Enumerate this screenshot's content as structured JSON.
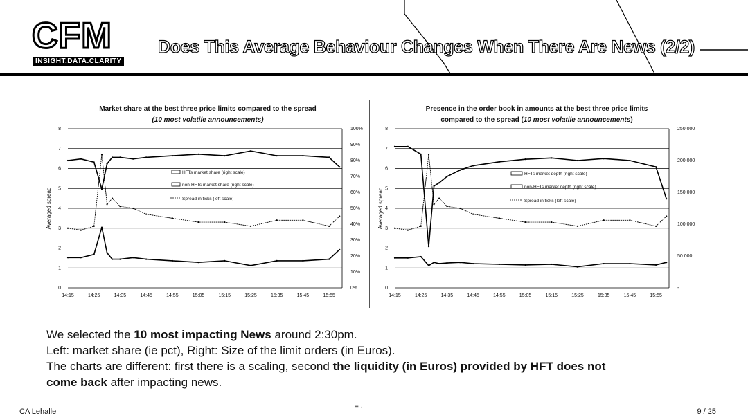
{
  "header": {
    "logo_text": "CFM",
    "logo_tagline": "INSIGHT.DATA.CLARITY",
    "title": "Does This Average Behaviour Changes When There Are News (2/2)"
  },
  "charts": [
    {
      "title": "Market share at the best three price limits compared to the spread",
      "subtitle": "(10 most volatile announcements)",
      "ylabel": "Averaged spread",
      "left_ticks": [
        "8",
        "7",
        "6",
        "5",
        "4",
        "3",
        "2",
        "1",
        "0"
      ],
      "right_ticks": [
        "100%",
        "90%",
        "80%",
        "70%",
        "60%",
        "50%",
        "40%",
        "30%",
        "20%",
        "10%",
        "0%"
      ],
      "x_ticks": [
        "14:15",
        "14:25",
        "14:35",
        "14:45",
        "14:55",
        "15:05",
        "15:15",
        "15:25",
        "15:35",
        "15:45",
        "15:55"
      ],
      "legend": [
        "HFTs market share (right scale)",
        "non-HFTs market share (right scale)",
        "Spread in ticks (left scale)"
      ]
    },
    {
      "title": "Presence in the order book in amounts at the best three price limits",
      "subtitle_plain": "compared to the spread (",
      "subtitle_italic": "10 most volatile announcements",
      "subtitle_end": ")",
      "ylabel": "Averaged spread",
      "left_ticks": [
        "8",
        "7",
        "6",
        "5",
        "4",
        "3",
        "2",
        "1",
        "0"
      ],
      "right_ticks": [
        "250 000",
        "200 000",
        "150 000",
        "100 000",
        "50 000",
        "-"
      ],
      "x_ticks": [
        "14:15",
        "14:25",
        "14:35",
        "14:45",
        "14:55",
        "15:05",
        "15:15",
        "15:25",
        "15:35",
        "15:45",
        "15:55"
      ],
      "legend": [
        "HFTs market depth (right scale)",
        "non-HFTs market depth (right scale)",
        "Spread in ticks (left scale)"
      ]
    }
  ],
  "chart_data": [
    {
      "type": "line",
      "title": "Market share at the best three price limits compared to the spread",
      "subtitle": "(10 most volatile announcements)",
      "ylabel": "Averaged spread",
      "ylim": [
        0,
        8
      ],
      "y2lim": [
        0,
        100
      ],
      "x": [
        "14:15",
        "14:20",
        "14:25",
        "14:28",
        "14:30",
        "14:32",
        "14:35",
        "14:40",
        "14:45",
        "14:55",
        "15:05",
        "15:15",
        "15:25",
        "15:35",
        "15:45",
        "15:55",
        "15:59"
      ],
      "series": [
        {
          "name": "HFTs market share (right scale)",
          "axis": "right",
          "values": [
            19,
            19,
            21,
            38,
            22,
            18,
            18,
            19,
            18,
            17,
            16,
            17,
            14,
            17,
            17,
            18,
            24
          ]
        },
        {
          "name": "non-HFTs market share (right scale)",
          "axis": "right",
          "values": [
            80,
            81,
            79,
            62,
            78,
            82,
            82,
            81,
            82,
            83,
            84,
            83,
            86,
            83,
            83,
            82,
            76
          ]
        },
        {
          "name": "Spread in ticks (left scale)",
          "axis": "left",
          "values": [
            3.0,
            2.9,
            3.1,
            6.7,
            4.2,
            4.5,
            4.1,
            4.0,
            3.7,
            3.5,
            3.3,
            3.3,
            3.1,
            3.4,
            3.4,
            3.1,
            3.6
          ]
        }
      ],
      "grid": true,
      "legend_position": "center-right"
    },
    {
      "type": "line",
      "title": "Presence in the order book in amounts at the best three price limits",
      "subtitle": "compared to the spread (10 most volatile announcements)",
      "ylabel": "Averaged spread",
      "ylim": [
        0,
        8
      ],
      "y2lim": [
        0,
        250000
      ],
      "x": [
        "14:15",
        "14:20",
        "14:25",
        "14:28",
        "14:30",
        "14:32",
        "14:35",
        "14:40",
        "14:45",
        "14:55",
        "15:05",
        "15:15",
        "15:25",
        "15:35",
        "15:45",
        "15:55",
        "15:59"
      ],
      "series": [
        {
          "name": "HFTs market depth (right scale)",
          "axis": "right",
          "values": [
            47000,
            47000,
            49000,
            35000,
            40000,
            38000,
            39000,
            40000,
            38000,
            37000,
            36000,
            37000,
            33000,
            38000,
            38000,
            36000,
            40000
          ]
        },
        {
          "name": "non-HFTs market depth (right scale)",
          "axis": "right",
          "values": [
            222000,
            222000,
            210000,
            65000,
            160000,
            165000,
            175000,
            185000,
            192000,
            198000,
            202000,
            204000,
            200000,
            203000,
            200000,
            190000,
            140000
          ]
        },
        {
          "name": "Spread in ticks (left scale)",
          "axis": "left",
          "values": [
            3.0,
            2.9,
            3.1,
            6.7,
            4.2,
            4.5,
            4.1,
            4.0,
            3.7,
            3.5,
            3.3,
            3.3,
            3.1,
            3.4,
            3.4,
            3.1,
            3.6
          ]
        }
      ],
      "grid": true,
      "legend_position": "center-right"
    }
  ],
  "body": {
    "l1_a": "We selected the ",
    "l1_b": "10 most impacting News",
    "l1_c": " around 2:30pm.",
    "l2": "Left: market share (ie pct), Right: Size of the limit orders (in Euros).",
    "l3_a": "The charts are different: first there is a scaling, second ",
    "l3_b": "the liquidity (in Euros) provided by HFT does not",
    "l4_a": "come back",
    "l4_b": " after impacting news."
  },
  "footer": {
    "author": "CA Lehalle",
    "page": "9 / 25",
    "mid_mark": "≡ ·"
  }
}
